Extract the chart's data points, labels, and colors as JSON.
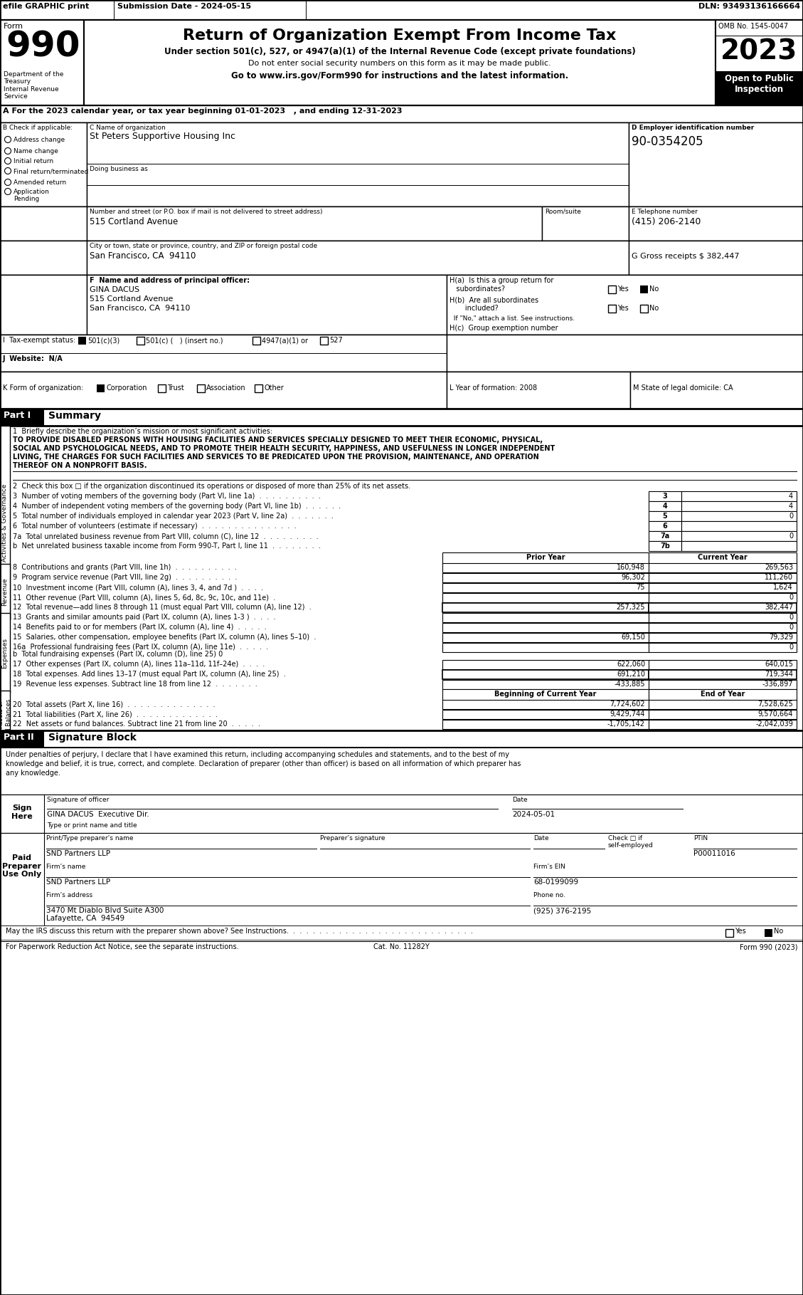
{
  "header_efile": "efile GRAPHIC print",
  "header_submission": "Submission Date - 2024-05-15",
  "header_dln": "DLN: 93493136166664",
  "form_number": "990",
  "title": "Return of Organization Exempt From Income Tax",
  "subtitle1": "Under section 501(c), 527, or 4947(a)(1) of the Internal Revenue Code (except private foundations)",
  "subtitle2": "Do not enter social security numbers on this form as it may be made public.",
  "subtitle3": "Go to www.irs.gov/Form990 for instructions and the latest information.",
  "omb": "OMB No. 1545-0047",
  "year": "2023",
  "open_public": "Open to Public\nInspection",
  "dept": "Department of the\nTreasury\nInternal Revenue\nService",
  "tax_year_line": "A For the 2023 calendar year, or tax year beginning 01-01-2023   , and ending 12-31-2023",
  "b_label": "B Check if applicable:",
  "b_items": [
    "Address change",
    "Name change",
    "Initial return",
    "Final return/terminated",
    "Amended return",
    "Application\nPending"
  ],
  "c_label": "C Name of organization",
  "org_name": "St Peters Supportive Housing Inc",
  "dba_label": "Doing business as",
  "address_label": "Number and street (or P.O. box if mail is not delivered to street address)",
  "address": "515 Cortland Avenue",
  "room_label": "Room/suite",
  "city_label": "City or town, state or province, country, and ZIP or foreign postal code",
  "city": "San Francisco, CA  94110",
  "d_label": "D Employer identification number",
  "ein": "90-0354205",
  "e_label": "E Telephone number",
  "phone": "(415) 206-2140",
  "g_label": "G Gross receipts $ 382,447",
  "f_label": "F  Name and address of principal officer:",
  "officer_name": "GINA DACUS",
  "officer_addr1": "515 Cortland Avenue",
  "officer_addr2": "San Francisco, CA  94110",
  "ha_label": "H(a)  Is this a group return for",
  "ha_sub": "subordinates?",
  "hb_label": "H(b)  Are all subordinates",
  "hb_sub": "included?",
  "hc_note": "If \"No,\" attach a list. See instructions.",
  "hc_label": "H(c)  Group exemption number",
  "i_label": "I  Tax-exempt status:",
  "i_501c3": "501(c)(3)",
  "i_501c": "501(c) (   ) (insert no.)",
  "i_4947": "4947(a)(1) or",
  "i_527": "527",
  "j_label": "J  Website:",
  "j_value": "N/A",
  "k_label": "K Form of organization:",
  "k_corp": "Corporation",
  "k_trust": "Trust",
  "k_assoc": "Association",
  "k_other": "Other",
  "l_label": "L Year of formation: 2008",
  "m_label": "M State of legal domicile: CA",
  "part1_label": "Part I",
  "part1_title": "Summary",
  "line1_label": "1  Briefly describe the organization’s mission or most significant activities:",
  "mission_line1": "TO PROVIDE DISABLED PERSONS WITH HOUSING FACILITIES AND SERVICES SPECIALLY DESIGNED TO MEET THEIR ECONOMIC, PHYSICAL,",
  "mission_line2": "SOCIAL AND PSYCHOLOGICAL NEEDS, AND TO PROMOTE THEIR HEALTH SECURITY, HAPPINESS, AND USEFULNESS IN LONGER INDEPENDENT",
  "mission_line3": "LIVING, THE CHARGES FOR SUCH FACILITIES AND SERVICES TO BE PREDICATED UPON THE PROVISION, MAINTENANCE, AND OPERATION",
  "mission_line4": "THEREOF ON A NONPROFIT BASIS.",
  "line2": "2  Check this box □ if the organization discontinued its operations or disposed of more than 25% of its net assets.",
  "line3": "3  Number of voting members of the governing body (Part VI, line 1a)  .  .  .  .  .  .  .  .  .  .",
  "line3_num": "3",
  "line3_val": "4",
  "line4": "4  Number of independent voting members of the governing body (Part VI, line 1b)  .  .  .  .  .  .",
  "line4_num": "4",
  "line4_val": "4",
  "line5": "5  Total number of individuals employed in calendar year 2023 (Part V, line 2a)  .  .  .  .  .  .  .",
  "line5_num": "5",
  "line5_val": "0",
  "line6": "6  Total number of volunteers (estimate if necessary)  .  .  .  .  .  .  .  .  .  .  .  .  .  .  .",
  "line6_num": "6",
  "line6_val": "",
  "line7a": "7a  Total unrelated business revenue from Part VIII, column (C), line 12  .  .  .  .  .  .  .  .  .",
  "line7a_num": "7a",
  "line7a_val": "0",
  "line7b": "b  Net unrelated business taxable income from Form 990-T, Part I, line 11  .  .  .  .  .  .  .  .",
  "line7b_num": "7b",
  "line7b_val": "",
  "col_prior": "Prior Year",
  "col_current": "Current Year",
  "line8": "8  Contributions and grants (Part VIII, line 1h)  .  .  .  .  .  .  .  .  .  .",
  "line8_prior": "160,948",
  "line8_curr": "269,563",
  "line9": "9  Program service revenue (Part VIII, line 2g)  .  .  .  .  .  .  .  .  .  .",
  "line9_prior": "96,302",
  "line9_curr": "111,260",
  "line10": "10  Investment income (Part VIII, column (A), lines 3, 4, and 7d )  .  .  .  .",
  "line10_prior": "75",
  "line10_curr": "1,624",
  "line11": "11  Other revenue (Part VIII, column (A), lines 5, 6d, 8c, 9c, 10c, and 11e)  .",
  "line11_prior": "",
  "line11_curr": "0",
  "line12": "12  Total revenue—add lines 8 through 11 (must equal Part VIII, column (A), line 12)  .",
  "line12_prior": "257,325",
  "line12_curr": "382,447",
  "line13": "13  Grants and similar amounts paid (Part IX, column (A), lines 1-3 )  .  .  .  .",
  "line13_prior": "",
  "line13_curr": "0",
  "line14": "14  Benefits paid to or for members (Part IX, column (A), line 4)  .  .  .  .  .",
  "line14_prior": "",
  "line14_curr": "0",
  "line15": "15  Salaries, other compensation, employee benefits (Part IX, column (A), lines 5–10)  .",
  "line15_prior": "69,150",
  "line15_curr": "79,329",
  "line16a": "16a  Professional fundraising fees (Part IX, column (A), line 11e)  .  .  .  .  .",
  "line16a_prior": "",
  "line16a_curr": "0",
  "line16b": "b  Total fundraising expenses (Part IX, column (D), line 25) 0",
  "line17": "17  Other expenses (Part IX, column (A), lines 11a–11d, 11f–24e)  .  .  .  .",
  "line17_prior": "622,060",
  "line17_curr": "640,015",
  "line18": "18  Total expenses. Add lines 13–17 (must equal Part IX, column (A), line 25)  .",
  "line18_prior": "691,210",
  "line18_curr": "719,344",
  "line19": "19  Revenue less expenses. Subtract line 18 from line 12  .  .  .  .  .  .  .",
  "line19_prior": "-433,885",
  "line19_curr": "-336,897",
  "col_beg": "Beginning of Current Year",
  "col_end": "End of Year",
  "line20": "20  Total assets (Part X, line 16)  .  .  .  .  .  .  .  .  .  .  .  .  .  .",
  "line20_beg": "7,724,602",
  "line20_end": "7,528,625",
  "line21": "21  Total liabilities (Part X, line 26)  .  .  .  .  .  .  .  .  .  .  .  .  .",
  "line21_beg": "9,429,744",
  "line21_end": "9,570,664",
  "line22": "22  Net assets or fund balances. Subtract line 21 from line 20  .  .  .  .  .",
  "line22_beg": "-1,705,142",
  "line22_end": "-2,042,039",
  "part2_label": "Part II",
  "part2_title": "Signature Block",
  "sig_decl1": "Under penalties of perjury, I declare that I have examined this return, including accompanying schedules and statements, and to the best of my",
  "sig_decl2": "knowledge and belief, it is true, correct, and complete. Declaration of preparer (other than officer) is based on all information of which preparer has",
  "sig_decl3": "any knowledge.",
  "sig_officer_label": "Signature of officer",
  "sig_date_label": "Date",
  "sig_date": "2024-05-01",
  "sig_name": "GINA DACUS  Executive Dir.",
  "sig_type_label": "Type or print name and title",
  "paid_label": "Paid\nPreparer\nUse Only",
  "prep_name_label": "Print/Type preparer’s name",
  "prep_sig_label": "Preparer’s signature",
  "prep_date_label": "Date",
  "prep_check_label": "Check □ if\nself-employed",
  "prep_ptin_label": "PTIN",
  "prep_name": "SND Partners LLP",
  "prep_ptin": "P00011016",
  "firm_name_label": "Firm’s name",
  "firm_name": "SND Partners LLP",
  "firm_ein_label": "Firm’s EIN",
  "firm_ein": "68-0199099",
  "firm_addr_label": "Firm’s address",
  "firm_addr": "3470 Mt Diablo Blvd Suite A300",
  "firm_city": "Lafayette, CA  94549",
  "firm_phone_label": "Phone no.",
  "firm_phone": "(925) 376-2195",
  "discuss_text": "May the IRS discuss this return with the preparer shown above? See Instructions.  .  .  .  .  .  .  .  .  .  .  .  .  .  .  .  .  .  .  .  .  .  .  .  .  .  .  .  .",
  "cat_label": "Cat. No. 11282Y",
  "form_footer": "Form 990 (2023)"
}
